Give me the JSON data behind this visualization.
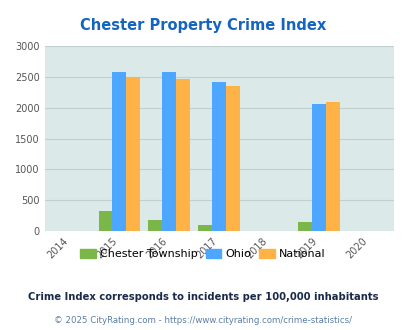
{
  "title": "Chester Property Crime Index",
  "years": [
    2014,
    2015,
    2016,
    2017,
    2018,
    2019,
    2020
  ],
  "xlim": [
    2013.5,
    2020.5
  ],
  "ylim": [
    0,
    3000
  ],
  "yticks": [
    0,
    500,
    1000,
    1500,
    2000,
    2500,
    3000
  ],
  "data": {
    "2015": {
      "chester": 330,
      "ohio": 2580,
      "national": 2500
    },
    "2016": {
      "chester": 180,
      "ohio": 2580,
      "national": 2460
    },
    "2017": {
      "chester": 100,
      "ohio": 2420,
      "national": 2360
    },
    "2019": {
      "chester": 150,
      "ohio": 2060,
      "national": 2090
    }
  },
  "colors": {
    "chester": "#7ab648",
    "ohio": "#4da6ff",
    "national": "#ffb347"
  },
  "bar_width": 0.28,
  "legend_labels": [
    "Chester Township",
    "Ohio",
    "National"
  ],
  "footnote1": "Crime Index corresponds to incidents per 100,000 inhabitants",
  "footnote2": "© 2025 CityRating.com - https://www.cityrating.com/crime-statistics/",
  "title_color": "#1565c0",
  "bg_color": "#dce9e9",
  "footnote1_color": "#1a2a4a",
  "footnote2_color": "#5b7fa6",
  "grid_color": "#c8d8d8"
}
